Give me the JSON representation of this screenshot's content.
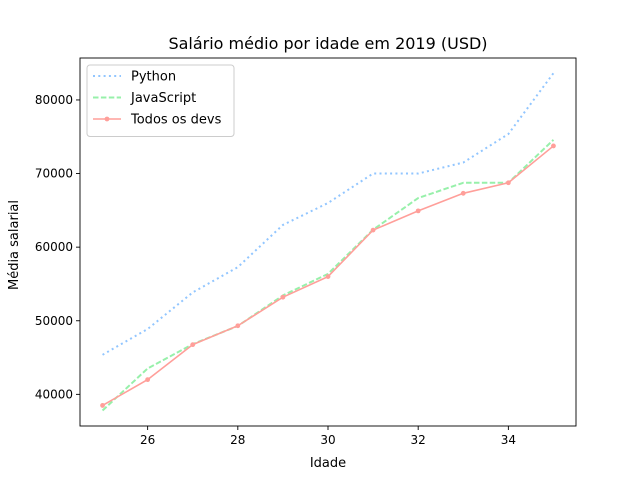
{
  "chart_data": {
    "type": "line",
    "title": "Salário médio por idade em 2019 (USD)",
    "xlabel": "Idade",
    "ylabel": "Média salarial",
    "x": [
      25,
      26,
      27,
      28,
      29,
      30,
      31,
      32,
      33,
      34,
      35
    ],
    "xlim": [
      24.5,
      35.5
    ],
    "ylim": [
      35700,
      85700
    ],
    "xticks": [
      26,
      28,
      30,
      32,
      34
    ],
    "yticks": [
      40000,
      50000,
      60000,
      70000,
      80000
    ],
    "grid": false,
    "legend_position": "top-left",
    "series": [
      {
        "name": "Python",
        "values": [
          45372,
          48876,
          53850,
          57287,
          63016,
          65998,
          70003,
          70000,
          71496,
          75370,
          83640
        ],
        "color": "#92c6ff",
        "style": "dotted",
        "marker": false
      },
      {
        "name": "JavaScript",
        "values": [
          37810,
          43515,
          46823,
          49293,
          53437,
          56373,
          62375,
          66674,
          68745,
          68746,
          74583
        ],
        "color": "#97f0aa",
        "style": "dashed",
        "marker": false
      },
      {
        "name": "Todos os devs",
        "values": [
          38496,
          42000,
          46752,
          49320,
          53200,
          56000,
          62316,
          64928,
          67317,
          68748,
          73752
        ],
        "color": "#ff9f9a",
        "style": "solid",
        "marker": true
      }
    ]
  }
}
